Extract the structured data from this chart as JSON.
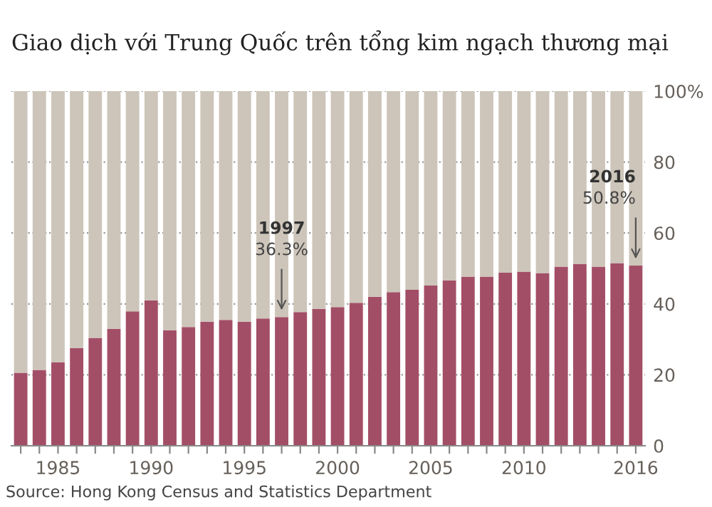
{
  "chart_data": {
    "type": "bar",
    "stacked": true,
    "title": "Giao dịch với Trung Quốc trên tổng kim ngạch thương mại",
    "x": [
      1983,
      1984,
      1985,
      1986,
      1987,
      1988,
      1989,
      1990,
      1991,
      1992,
      1993,
      1994,
      1995,
      1996,
      1997,
      1998,
      1999,
      2000,
      2001,
      2002,
      2003,
      2004,
      2005,
      2006,
      2007,
      2008,
      2009,
      2010,
      2011,
      2012,
      2013,
      2014,
      2015,
      2016
    ],
    "series": [
      {
        "color": "#a34e67",
        "values": [
          20.6,
          21.4,
          23.5,
          27.5,
          30.4,
          33.0,
          37.9,
          41.0,
          32.6,
          33.5,
          35.0,
          35.5,
          35.0,
          35.9,
          36.3,
          37.7,
          38.6,
          39.1,
          40.3,
          42.0,
          43.3,
          44.0,
          45.2,
          46.6,
          47.7,
          47.7,
          48.8,
          49.1,
          48.7,
          50.5,
          51.2,
          50.5,
          51.5,
          50.8
        ]
      },
      {
        "color": "#cdc5b9",
        "values": [
          79.4,
          78.6,
          76.5,
          72.5,
          69.6,
          67.0,
          62.1,
          59.0,
          67.4,
          66.5,
          65.0,
          64.5,
          65.0,
          64.1,
          63.7,
          62.3,
          61.4,
          60.9,
          59.7,
          58.0,
          56.7,
          56.0,
          54.8,
          53.4,
          52.3,
          52.3,
          51.2,
          50.9,
          51.3,
          49.5,
          48.8,
          49.5,
          48.5,
          49.2
        ]
      }
    ],
    "xlim": [
      1982.5,
      2016.5
    ],
    "xticks": [
      {
        "value": 1983,
        "label": null
      },
      {
        "value": 1984,
        "label": null
      },
      1985,
      {
        "value": 1986,
        "label": null
      },
      {
        "value": 1987,
        "label": null
      },
      {
        "value": 1988,
        "label": null
      },
      {
        "value": 1989,
        "label": null
      },
      1990,
      {
        "value": 1991,
        "label": null
      },
      {
        "value": 1992,
        "label": null
      },
      {
        "value": 1993,
        "label": null
      },
      {
        "value": 1994,
        "label": null
      },
      1995,
      {
        "value": 1996,
        "label": null
      },
      {
        "value": 1997,
        "label": null
      },
      {
        "value": 1998,
        "label": null
      },
      {
        "value": 1999,
        "label": null
      },
      2000,
      {
        "value": 2001,
        "label": null
      },
      {
        "value": 2002,
        "label": null
      },
      {
        "value": 2003,
        "label": null
      },
      {
        "value": 2004,
        "label": null
      },
      2005,
      {
        "value": 2006,
        "label": null
      },
      {
        "value": 2007,
        "label": null
      },
      {
        "value": 2008,
        "label": null
      },
      {
        "value": 2009,
        "label": null
      },
      2010,
      {
        "value": 2011,
        "label": null
      },
      {
        "value": 2012,
        "label": null
      },
      {
        "value": 2013,
        "label": null
      },
      {
        "value": 2014,
        "label": null
      },
      {
        "value": 2015,
        "label": null
      },
      2016
    ],
    "ylim": [
      0,
      100
    ],
    "yticks": [
      0,
      20,
      40,
      60,
      80,
      {
        "value": 100,
        "label": "100%"
      }
    ],
    "grid": "y",
    "annotations": [
      {
        "text": "1997\n36.3%",
        "x": 1997,
        "y": 36.3
      },
      {
        "text": "2016\n50.8%",
        "x": 2016,
        "y": 50.8
      },
      "Source: Hong Kong Census and Statistics Department"
    ]
  }
}
